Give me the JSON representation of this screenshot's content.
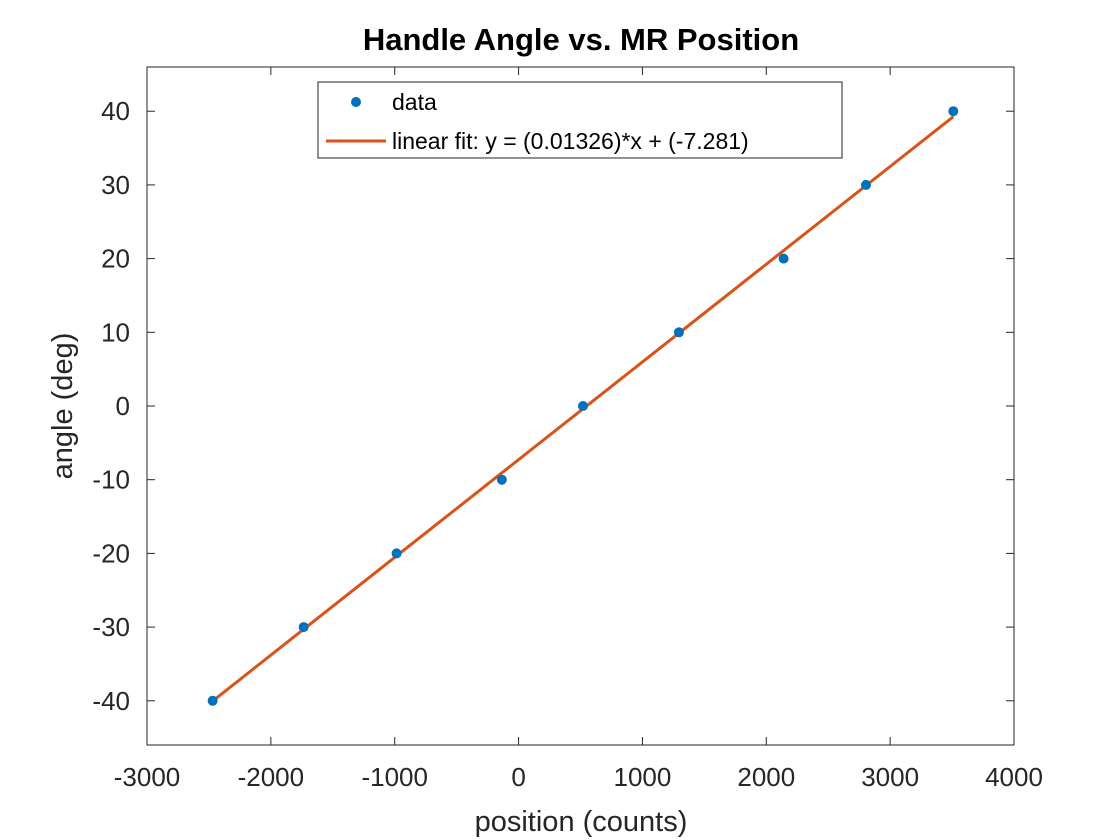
{
  "chart_data": {
    "type": "scatter",
    "title": "Handle Angle vs. MR Position",
    "xlabel": "position (counts)",
    "ylabel": "angle (deg)",
    "xlim": [
      -3000,
      4000
    ],
    "ylim": [
      -46,
      46
    ],
    "xticks": [
      -3000,
      -2000,
      -1000,
      0,
      1000,
      2000,
      3000,
      4000
    ],
    "yticks": [
      -40,
      -30,
      -20,
      -10,
      0,
      10,
      20,
      30,
      40
    ],
    "xtick_labels": [
      "-3000",
      "-2000",
      "-1000",
      "0",
      "1000",
      "2000",
      "3000",
      "4000"
    ],
    "ytick_labels": [
      "-40",
      "-30",
      "-20",
      "-10",
      "0",
      "10",
      "20",
      "30",
      "40"
    ],
    "grid": false,
    "box": true,
    "legend_position": "top-center",
    "series": [
      {
        "name": "data",
        "kind": "markers",
        "color": "#0072BD",
        "x": [
          -2470,
          -1735,
          -985,
          -135,
          520,
          1295,
          2140,
          2805,
          3510
        ],
        "y": [
          -40,
          -30,
          -20,
          -10,
          0,
          10,
          20,
          30,
          40
        ]
      },
      {
        "name": "linear fit: y = (0.01326)*x + (-7.281)",
        "kind": "line",
        "color": "#D95319",
        "slope": 0.01326,
        "intercept": -7.281,
        "x_range": [
          -2470,
          3510
        ]
      }
    ]
  }
}
